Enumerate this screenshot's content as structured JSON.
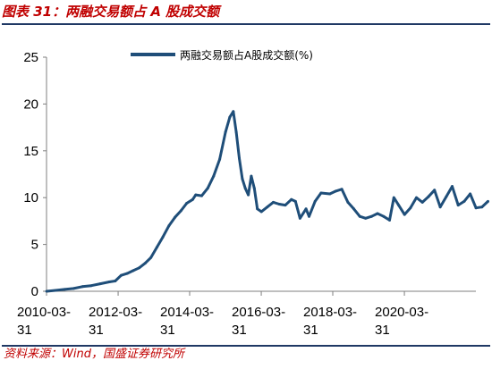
{
  "figure": {
    "title": "图表 31：两融交易额占 A 股成交额",
    "source": "资料来源：Wind，国盛证券研究所"
  },
  "colors": {
    "line": "#1f4e79",
    "title": "#c00000",
    "rule": "#1f3864"
  },
  "chart_data": {
    "type": "line",
    "title": "",
    "xlabel": "",
    "ylabel": "",
    "ylim": [
      0,
      25
    ],
    "xlim": [
      "2010-03-31",
      "2022-03-31"
    ],
    "yticks": [
      0,
      5,
      10,
      15,
      20,
      25
    ],
    "xticks": [
      {
        "date": "2010-03-31",
        "line1": "2010-03-",
        "line2": "31"
      },
      {
        "date": "2012-03-31",
        "line1": "2012-03-",
        "line2": "31"
      },
      {
        "date": "2014-03-31",
        "line1": "2014-03-",
        "line2": "31"
      },
      {
        "date": "2016-03-31",
        "line1": "2016-03-",
        "line2": "31"
      },
      {
        "date": "2018-03-31",
        "line1": "2018-03-",
        "line2": "31"
      },
      {
        "date": "2020-03-31",
        "line1": "2020-03-",
        "line2": "31"
      }
    ],
    "grid": false,
    "legend_position": "top",
    "series": [
      {
        "name": "两融交易额占A股成交额(%)",
        "points": [
          [
            "2010-04-01",
            0.0
          ],
          [
            "2010-07-01",
            0.1
          ],
          [
            "2010-10-01",
            0.2
          ],
          [
            "2011-01-01",
            0.3
          ],
          [
            "2011-04-01",
            0.5
          ],
          [
            "2011-07-01",
            0.6
          ],
          [
            "2011-10-01",
            0.8
          ],
          [
            "2012-01-01",
            1.0
          ],
          [
            "2012-03-01",
            1.1
          ],
          [
            "2012-05-01",
            1.7
          ],
          [
            "2012-07-01",
            1.9
          ],
          [
            "2012-09-01",
            2.2
          ],
          [
            "2012-11-01",
            2.5
          ],
          [
            "2013-01-01",
            3.0
          ],
          [
            "2013-03-01",
            3.6
          ],
          [
            "2013-05-01",
            4.7
          ],
          [
            "2013-07-01",
            5.8
          ],
          [
            "2013-09-01",
            7.0
          ],
          [
            "2013-11-01",
            7.9
          ],
          [
            "2014-01-01",
            8.6
          ],
          [
            "2014-03-01",
            9.4
          ],
          [
            "2014-05-01",
            9.8
          ],
          [
            "2014-06-01",
            10.3
          ],
          [
            "2014-08-01",
            10.2
          ],
          [
            "2014-10-01",
            11.0
          ],
          [
            "2014-12-01",
            12.3
          ],
          [
            "2015-02-01",
            14.1
          ],
          [
            "2015-04-01",
            17.0
          ],
          [
            "2015-05-15",
            18.6
          ],
          [
            "2015-06-20",
            19.2
          ],
          [
            "2015-07-20",
            17.0
          ],
          [
            "2015-08-20",
            14.2
          ],
          [
            "2015-09-20",
            12.0
          ],
          [
            "2015-10-20",
            11.0
          ],
          [
            "2015-11-20",
            10.3
          ],
          [
            "2015-12-20",
            12.3
          ],
          [
            "2016-01-20",
            11.0
          ],
          [
            "2016-02-20",
            8.8
          ],
          [
            "2016-04-01",
            8.5
          ],
          [
            "2016-06-01",
            9.0
          ],
          [
            "2016-08-01",
            9.5
          ],
          [
            "2016-10-01",
            9.3
          ],
          [
            "2016-12-01",
            9.2
          ],
          [
            "2017-02-01",
            9.8
          ],
          [
            "2017-03-15",
            9.6
          ],
          [
            "2017-05-01",
            7.8
          ],
          [
            "2017-07-01",
            8.8
          ],
          [
            "2017-08-01",
            8.0
          ],
          [
            "2017-10-01",
            9.6
          ],
          [
            "2017-12-01",
            10.5
          ],
          [
            "2018-03-01",
            10.4
          ],
          [
            "2018-05-01",
            10.7
          ],
          [
            "2018-07-01",
            10.9
          ],
          [
            "2018-09-01",
            9.5
          ],
          [
            "2018-11-01",
            8.8
          ],
          [
            "2019-01-01",
            8.0
          ],
          [
            "2019-03-01",
            7.8
          ],
          [
            "2019-05-01",
            8.0
          ],
          [
            "2019-07-01",
            8.3
          ],
          [
            "2019-09-01",
            8.0
          ],
          [
            "2019-11-01",
            7.6
          ],
          [
            "2019-12-15",
            10.0
          ],
          [
            "2020-02-01",
            9.2
          ],
          [
            "2020-04-01",
            8.2
          ],
          [
            "2020-06-01",
            8.9
          ],
          [
            "2020-08-01",
            10.0
          ],
          [
            "2020-10-01",
            9.5
          ],
          [
            "2020-12-01",
            10.1
          ],
          [
            "2021-02-01",
            10.8
          ],
          [
            "2021-04-01",
            9.0
          ],
          [
            "2021-06-01",
            10.1
          ],
          [
            "2021-08-01",
            11.2
          ],
          [
            "2021-10-01",
            9.2
          ],
          [
            "2021-12-01",
            9.6
          ],
          [
            "2022-02-01",
            10.4
          ],
          [
            "2022-04-01",
            8.9
          ],
          [
            "2022-06-01",
            9.0
          ],
          [
            "2022-08-01",
            9.6
          ]
        ]
      }
    ]
  }
}
